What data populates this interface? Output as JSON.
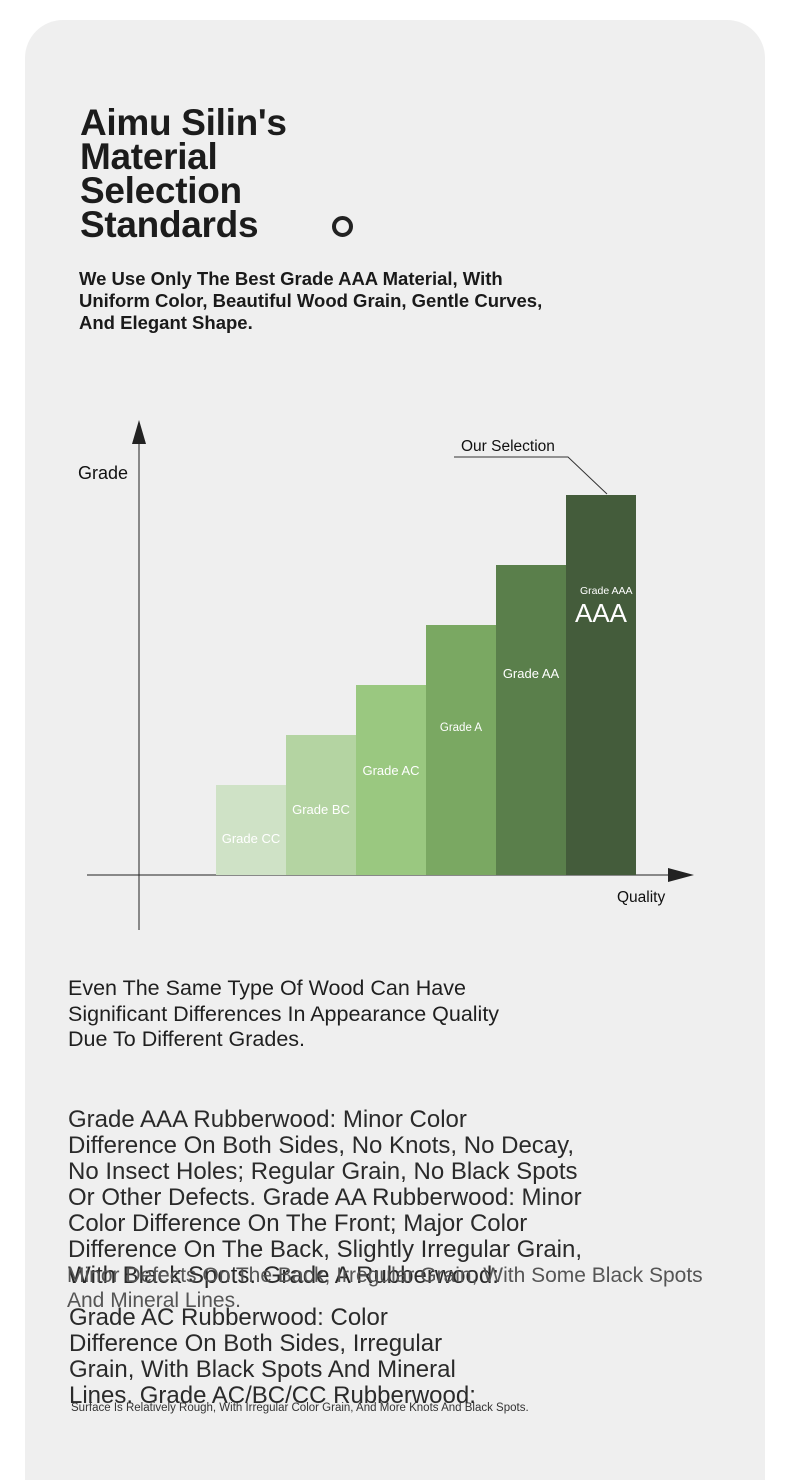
{
  "heading": {
    "lines": [
      "Aimu Silin's",
      "Material",
      "Selection",
      "Standards"
    ]
  },
  "subtitle": {
    "lines": [
      "We Use Only The Best Grade AAA Material, With",
      "Uniform Color, Beautiful Wood Grain, Gentle Curves,",
      "And Elegant Shape."
    ]
  },
  "chart_data": {
    "type": "bar",
    "ylabel": "Grade",
    "xlabel": "Quality",
    "annotation": "Our Selection",
    "categories": [
      "Grade CC",
      "Grade BC",
      "Grade AC",
      "Grade A",
      "Grade AA",
      "Grade AAA"
    ],
    "values": [
      1,
      2,
      3,
      4,
      5,
      6
    ],
    "colors": [
      "#cfe2c6",
      "#b4d4a2",
      "#9ac880",
      "#7aa862",
      "#5a7f4b",
      "#445c3b"
    ],
    "badge": "AAA"
  },
  "paragraph1": {
    "lines": [
      "Even The Same Type Of Wood Can Have",
      "Significant Differences In Appearance Quality",
      "Due To Different Grades."
    ]
  },
  "paragraph2": {
    "lines": [
      "Grade AAA Rubberwood: Minor Color",
      "Difference On Both Sides, No Knots, No Decay,",
      "No Insect Holes; Regular Grain, No Black Spots",
      "Or Other Defects. Grade AA Rubberwood: Minor",
      "Color Difference On The Front; Major Color",
      "Difference On The Back, Slightly Irregular Grain,",
      "With Black Spots. Grade A Rubberwood:"
    ]
  },
  "overlay": {
    "lines": [
      "Minor Defects On The Back, Irregular Grain, With Some Black Spots",
      "And Mineral Lines."
    ]
  },
  "paragraph3": {
    "lines": [
      "Grade AC Rubberwood: Color",
      "Difference On Both Sides, Irregular",
      "Grain, With Black Spots And Mineral",
      "Lines. Grade AC/BC/CC Rubberwood:"
    ]
  },
  "footnote": "Surface Is Relatively Rough, With Irregular Color Grain, And More Knots And Black Spots."
}
